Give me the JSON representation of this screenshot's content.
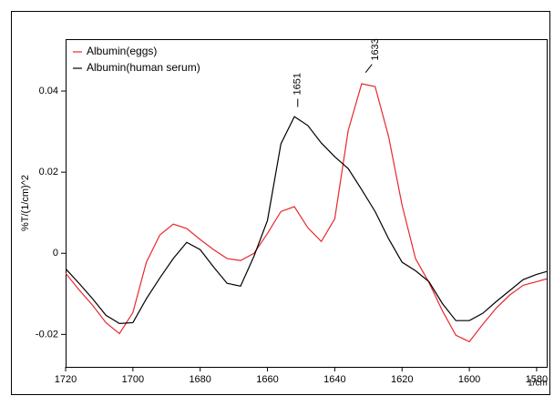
{
  "chart_data": {
    "type": "line",
    "y_label": "%T/(1/cm)^2",
    "x_unit": "1/cm",
    "x": [
      1720,
      1716,
      1712,
      1708,
      1704,
      1700,
      1696,
      1692,
      1688,
      1684,
      1680,
      1676,
      1672,
      1668,
      1664,
      1660,
      1656,
      1652,
      1648,
      1644,
      1640,
      1636,
      1632,
      1628,
      1624,
      1620,
      1616,
      1612,
      1608,
      1604,
      1600,
      1596,
      1592,
      1588,
      1584,
      1580,
      1577
    ],
    "series": [
      {
        "name": "Albumin(eggs)",
        "color": "#e8282b",
        "values": [
          -0.0049,
          -0.009,
          -0.0128,
          -0.0171,
          -0.0198,
          -0.0146,
          -0.0022,
          0.0045,
          0.0072,
          0.0061,
          0.0034,
          0.0009,
          -0.0013,
          -0.0018,
          0.0,
          0.0049,
          0.0103,
          0.0115,
          0.0063,
          0.0029,
          0.0085,
          0.0303,
          0.0418,
          0.0411,
          0.0288,
          0.0119,
          -0.0013,
          -0.0072,
          -0.0142,
          -0.0202,
          -0.0218,
          -0.0175,
          -0.0135,
          -0.0103,
          -0.0079,
          -0.007,
          -0.0063
        ]
      },
      {
        "name": "Albumin(human serum)",
        "color": "#000000",
        "values": [
          -0.0038,
          -0.0074,
          -0.0112,
          -0.0153,
          -0.0173,
          -0.0171,
          -0.0112,
          -0.0061,
          -0.0013,
          0.0027,
          0.0009,
          -0.0034,
          -0.0074,
          -0.0081,
          -0.0007,
          0.0081,
          0.027,
          0.0337,
          0.0315,
          0.0272,
          0.0238,
          0.0209,
          0.0157,
          0.0103,
          0.0036,
          -0.0022,
          -0.0043,
          -0.007,
          -0.0124,
          -0.0166,
          -0.0166,
          -0.0148,
          -0.0119,
          -0.0092,
          -0.0065,
          -0.0052,
          -0.0045
        ]
      }
    ],
    "annotations": [
      {
        "text": "1651",
        "x": 1651,
        "y": 0.0345
      },
      {
        "text": "1633",
        "x": 1633,
        "y": 0.043
      }
    ],
    "xlim": [
      1720,
      1577
    ],
    "xticks": [
      1720,
      1700,
      1680,
      1660,
      1640,
      1620,
      1600,
      1580
    ],
    "ylim": [
      -0.028,
      0.0528
    ],
    "yticks": [
      0.04,
      0.02,
      0,
      -0.02
    ],
    "legend": "top-left",
    "grid": false
  }
}
